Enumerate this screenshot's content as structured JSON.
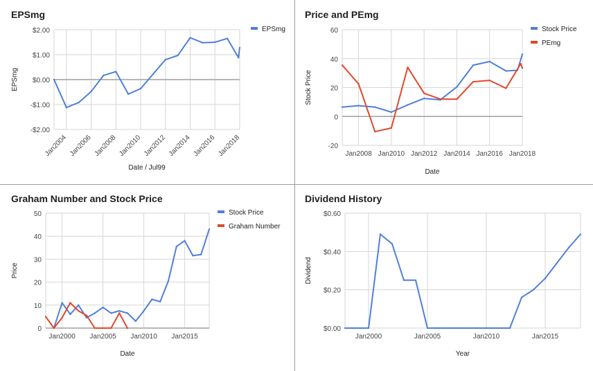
{
  "colors": {
    "blue": "#4f7fdc",
    "red": "#e2472a",
    "grid": "#d6d6d6",
    "zero": "#9e9e9e"
  },
  "chart_data": [
    {
      "type": "line",
      "title": "EPSmg",
      "xlabel": "Date / Jul99",
      "ylabel": "EPSmg",
      "xlim": [
        2003,
        2018
      ],
      "ylim": [
        -2,
        2
      ],
      "yticks": [
        2,
        1,
        0,
        -1,
        -2
      ],
      "ytick_labels": [
        "$2.00",
        "$1.00",
        "$0.00",
        "-$1.00",
        "-$2.00"
      ],
      "xticks": [
        2004,
        2006,
        2008,
        2010,
        2012,
        2014,
        2016,
        2018
      ],
      "xtick_labels": [
        "Jan2004",
        "Jan2006",
        "Jan2008",
        "Jan2010",
        "Jan2012",
        "Jan2014",
        "Jan2016",
        "Jan2018"
      ],
      "xtick_rotation": -45,
      "zero_line": true,
      "legend": "top-right",
      "series": [
        {
          "name": "EPSmg",
          "color": "blue",
          "x": [
            2003.0,
            2004.0,
            2005.0,
            2006.0,
            2007.0,
            2008.0,
            2009.0,
            2010.0,
            2011.0,
            2012.0,
            2013.0,
            2014.0,
            2015.0,
            2016.0,
            2017.0,
            2017.9,
            2018.0
          ],
          "values": [
            0.0,
            -1.12,
            -0.92,
            -0.48,
            0.17,
            0.32,
            -0.58,
            -0.36,
            0.22,
            0.8,
            0.97,
            1.68,
            1.48,
            1.5,
            1.65,
            0.88,
            1.28
          ]
        }
      ]
    },
    {
      "type": "line",
      "title": "Price and PEmg",
      "xlabel": "Date",
      "ylabel": "Stock Price",
      "xlim": [
        2007,
        2018
      ],
      "ylim": [
        -20,
        60
      ],
      "yticks": [
        60,
        40,
        20,
        0,
        -20
      ],
      "ytick_labels": [
        "60",
        "40",
        "20",
        "0",
        "-20"
      ],
      "xticks": [
        2008,
        2010,
        2012,
        2014,
        2016,
        2018
      ],
      "xtick_labels": [
        "Jan2008",
        "Jan2010",
        "Jan2012",
        "Jan2014",
        "Jan2016",
        "Jan2018"
      ],
      "zero_line": true,
      "legend": "top-right",
      "series": [
        {
          "name": "Stock Price",
          "color": "blue",
          "x": [
            2007.0,
            2008.0,
            2009.0,
            2010.0,
            2011.0,
            2012.0,
            2013.0,
            2014.0,
            2015.0,
            2016.0,
            2017.0,
            2017.7,
            2018.0
          ],
          "values": [
            6.5,
            7.5,
            6.5,
            3.0,
            8.0,
            12.5,
            11.5,
            20.5,
            35.5,
            38.0,
            31.5,
            32.0,
            43.0
          ]
        },
        {
          "name": "PEmg",
          "color": "red",
          "x": [
            2007.0,
            2008.0,
            2009.0,
            2010.0,
            2011.0,
            2012.0,
            2013.0,
            2014.0,
            2015.0,
            2016.0,
            2017.0,
            2017.9,
            2018.0
          ],
          "values": [
            35.5,
            22.5,
            -10.5,
            -8.0,
            34.0,
            16.0,
            12.0,
            12.0,
            24.0,
            25.0,
            19.5,
            36.5,
            33.5
          ]
        }
      ]
    },
    {
      "type": "line",
      "title": "Graham Number and Stock Price",
      "xlabel": "Date",
      "ylabel": "Price",
      "xlim": [
        1998,
        2018
      ],
      "ylim": [
        0,
        50
      ],
      "yticks": [
        50,
        40,
        30,
        20,
        10,
        0
      ],
      "ytick_labels": [
        "50",
        "40",
        "30",
        "20",
        "10",
        "0"
      ],
      "xticks": [
        2000,
        2005,
        2010,
        2015
      ],
      "xtick_labels": [
        "Jan2000",
        "Jan2005",
        "Jan2010",
        "Jan2015"
      ],
      "zero_line": true,
      "legend": "top-right",
      "series": [
        {
          "name": "Stock Price",
          "color": "blue",
          "x": [
            1999.0,
            2000.0,
            2001.0,
            2002.0,
            2003.0,
            2004.0,
            2005.0,
            2006.0,
            2007.0,
            2008.0,
            2009.0,
            2010.0,
            2011.0,
            2012.0,
            2013.0,
            2014.0,
            2015.0,
            2016.0,
            2017.0,
            2018.0
          ],
          "values": [
            0.0,
            11.0,
            6.0,
            10.0,
            4.5,
            6.5,
            9.0,
            6.5,
            7.5,
            6.5,
            3.0,
            7.5,
            12.5,
            11.5,
            20.5,
            35.5,
            38.0,
            31.5,
            32.0,
            43.0
          ]
        },
        {
          "name": "Graham Number",
          "color": "red",
          "x": [
            1998.0,
            1999.0,
            2000.0,
            2001.0,
            2002.0,
            2003.0,
            2004.0,
            2005.0,
            2006.0,
            2007.0,
            2008.0
          ],
          "values": [
            5.0,
            0.0,
            4.5,
            11.0,
            7.5,
            5.5,
            0.0,
            0.0,
            0.0,
            6.5,
            0.0
          ]
        }
      ]
    },
    {
      "type": "line",
      "title": "Dividend History",
      "xlabel": "Year",
      "ylabel": "Dividend",
      "xlim": [
        1998,
        2018
      ],
      "ylim": [
        0,
        0.6
      ],
      "yticks": [
        0.6,
        0.4,
        0.2,
        0.0
      ],
      "ytick_labels": [
        "$0.60",
        "$0.40",
        "$0.20",
        "$0.00"
      ],
      "xticks": [
        2000,
        2005,
        2010,
        2015
      ],
      "xtick_labels": [
        "Jan2000",
        "Jan2005",
        "Jan2010",
        "Jan2015"
      ],
      "zero_line": false,
      "legend": "none",
      "series": [
        {
          "name": "",
          "color": "blue",
          "x": [
            1998.0,
            2000.0,
            2001.0,
            2002.0,
            2003.0,
            2004.0,
            2005.0,
            2006.0,
            2007.0,
            2008.0,
            2009.0,
            2010.0,
            2011.0,
            2012.0,
            2013.0,
            2014.0,
            2015.0,
            2016.0,
            2017.0,
            2018.0
          ],
          "values": [
            0.0,
            0.0,
            0.49,
            0.44,
            0.25,
            0.25,
            0.0,
            0.0,
            0.0,
            0.0,
            0.0,
            0.0,
            0.0,
            0.0,
            0.16,
            0.2,
            0.26,
            0.34,
            0.42,
            0.49
          ]
        }
      ]
    }
  ]
}
